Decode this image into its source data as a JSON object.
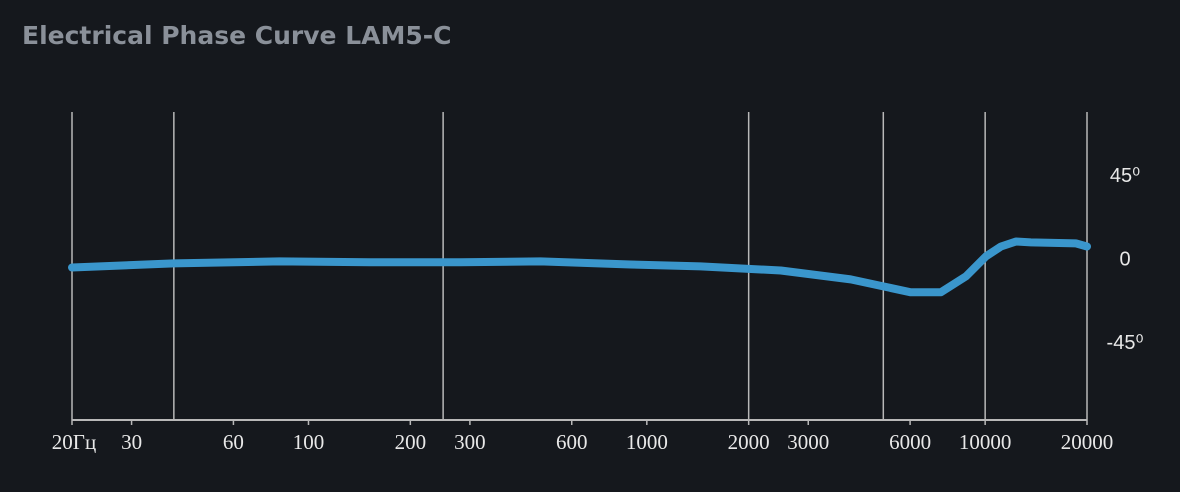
{
  "chart_data": {
    "type": "line",
    "title": "Electrical Phase Curve LAM5-C",
    "x": [
      20,
      40,
      82,
      152,
      281,
      485,
      895,
      1442,
      2489,
      4006,
      6029,
      7400,
      8770,
      10050,
      11140,
      12330,
      13640,
      18540,
      20000
    ],
    "series": [
      {
        "color": "#3a96cc",
        "values": [
          -3.8,
          -1.6,
          -0.5,
          -1,
          -1,
          -0.5,
          -2.2,
          -3.2,
          -5.4,
          -10.2,
          -17.2,
          -17.2,
          -8.6,
          2.2,
          7.5,
          10.2,
          9.7,
          9.2,
          7.5
        ]
      }
    ],
    "xscale": "log",
    "xlim": [
      20,
      20000
    ],
    "xticks": [
      {
        "value": 20,
        "label": "20Гц"
      },
      30,
      60,
      100,
      200,
      300,
      600,
      1000,
      2000,
      3000,
      6000,
      10000,
      20000
    ],
    "xgrid": [
      20,
      40,
      250,
      2000,
      5000,
      10000,
      20000
    ],
    "ylim": [
      -86,
      80
    ],
    "yticks": [
      {
        "value": 45,
        "label": "45⁰"
      },
      0,
      {
        "value": -45,
        "label": "-45⁰"
      }
    ]
  }
}
